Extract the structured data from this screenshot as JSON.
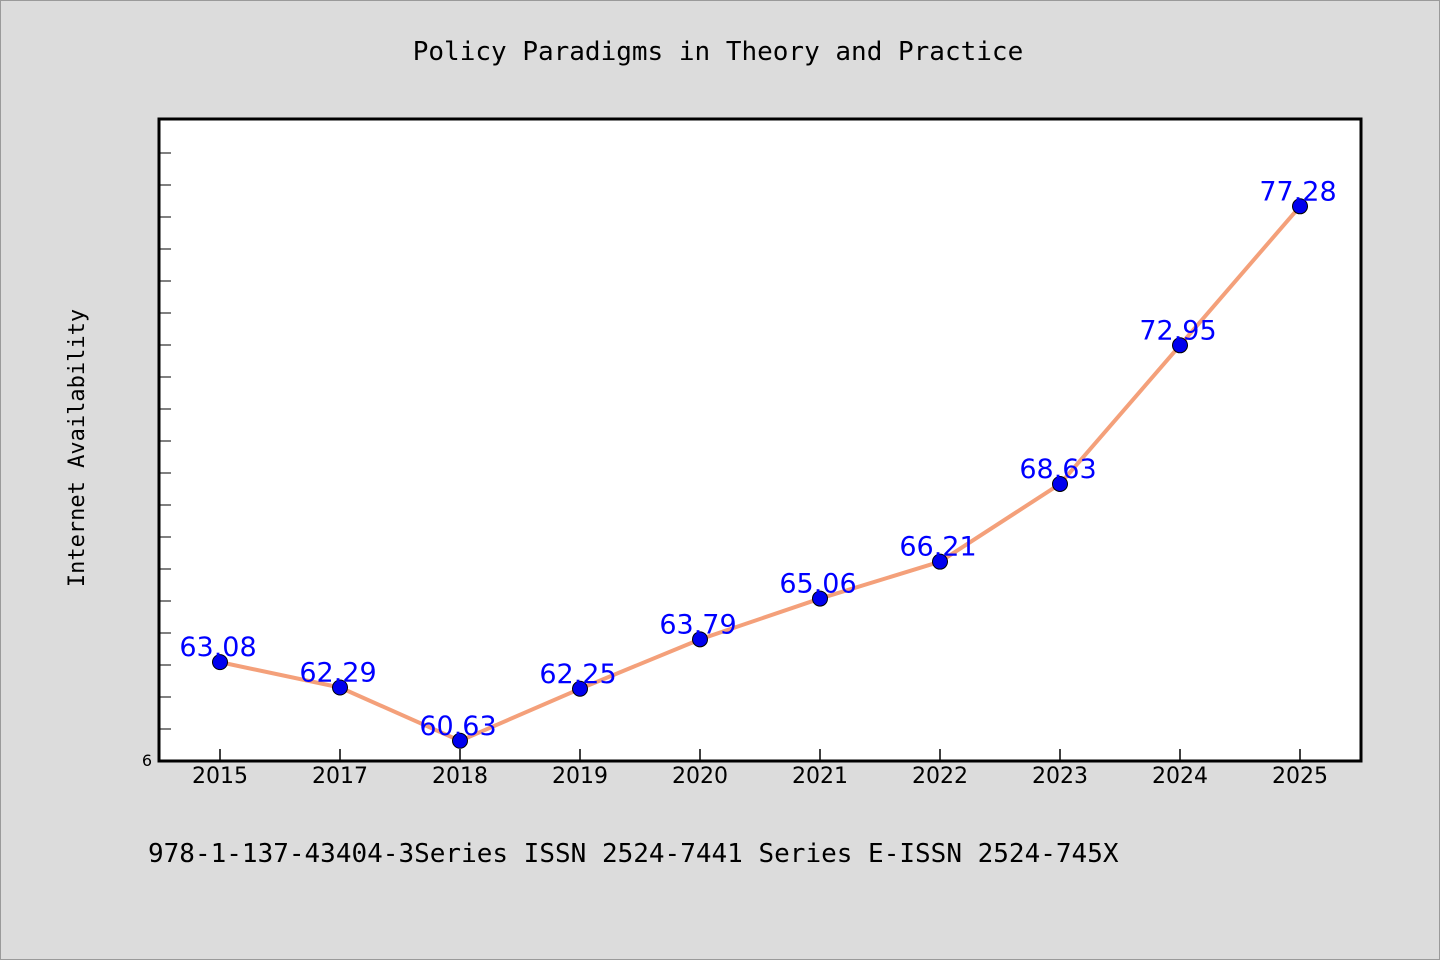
{
  "chart_data": {
    "type": "line",
    "title": "Policy Paradigms in Theory and Practice",
    "xlabel": "",
    "ylabel": "Internet Availability",
    "categories": [
      "2015",
      "2017",
      "2018",
      "2019",
      "2020",
      "2021",
      "2022",
      "2023",
      "2024",
      "2025"
    ],
    "series": [
      {
        "values": [
          63.08,
          62.29,
          60.63,
          62.25,
          63.79,
          65.06,
          66.21,
          68.63,
          72.95,
          77.28
        ],
        "labels": [
          "63.08",
          "62.29",
          "60.63",
          "62.25",
          "63.79",
          "65.06",
          "66.21",
          "68.63",
          "72.95",
          "77.28"
        ],
        "line_color": "#f4a07a",
        "marker_color": "#0000ee"
      }
    ],
    "y_tick_labels": [
      "6"
    ],
    "ylim": [
      60.0,
      80.0
    ],
    "grid": false,
    "footer": "978-1-137-43404-3Series ISSN 2524-7441 Series E-ISSN 2524-745X"
  }
}
